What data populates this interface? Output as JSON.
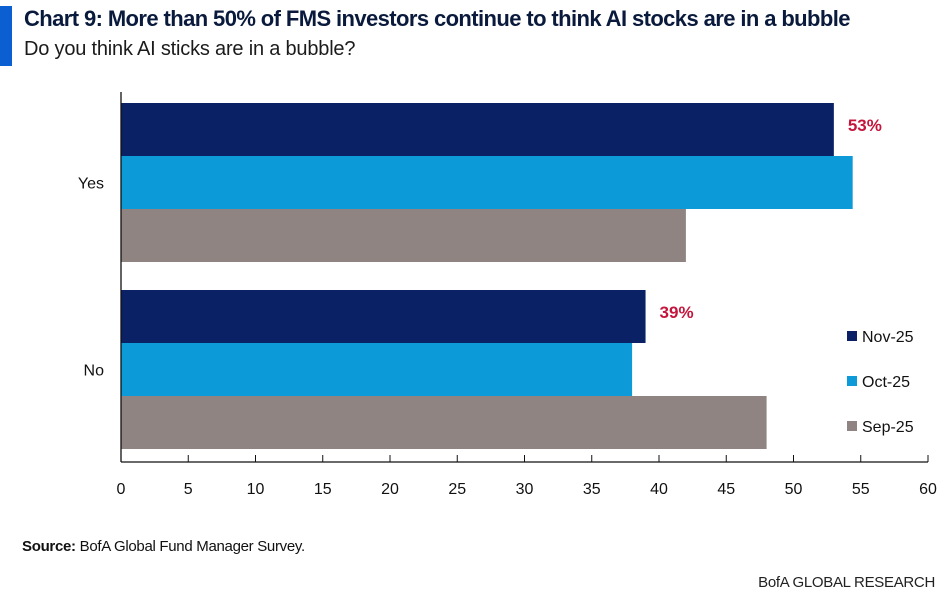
{
  "title": "Chart 9: More than 50% of FMS investors continue to think AI stocks are in a bubble",
  "subtitle": "Do you think AI sticks are in a bubble?",
  "source_label": "Source:",
  "source_text": " BofA Global Fund Manager Survey.",
  "footer": "BofA GLOBAL RESEARCH",
  "chart_data": {
    "type": "bar",
    "orientation": "horizontal",
    "categories": [
      "Yes",
      "No"
    ],
    "series": [
      {
        "name": "Nov-25",
        "values": [
          53,
          39
        ],
        "color": "#0a2265"
      },
      {
        "name": "Oct-25",
        "values": [
          54.4,
          38
        ],
        "color": "#0d9ad9"
      },
      {
        "name": "Sep-25",
        "values": [
          42,
          48
        ],
        "color": "#8f8482"
      }
    ],
    "annotations": [
      {
        "category": "Yes",
        "series": "Nov-25",
        "text": "53%",
        "color": "#c4163c"
      },
      {
        "category": "No",
        "series": "Nov-25",
        "text": "39%",
        "color": "#c4163c"
      }
    ],
    "xlim": [
      0,
      60
    ],
    "xticks": [
      "0",
      "5",
      "10",
      "15",
      "20",
      "25",
      "30",
      "35",
      "40",
      "45",
      "50",
      "55",
      "60"
    ],
    "grid": false,
    "legend_position": "right"
  }
}
